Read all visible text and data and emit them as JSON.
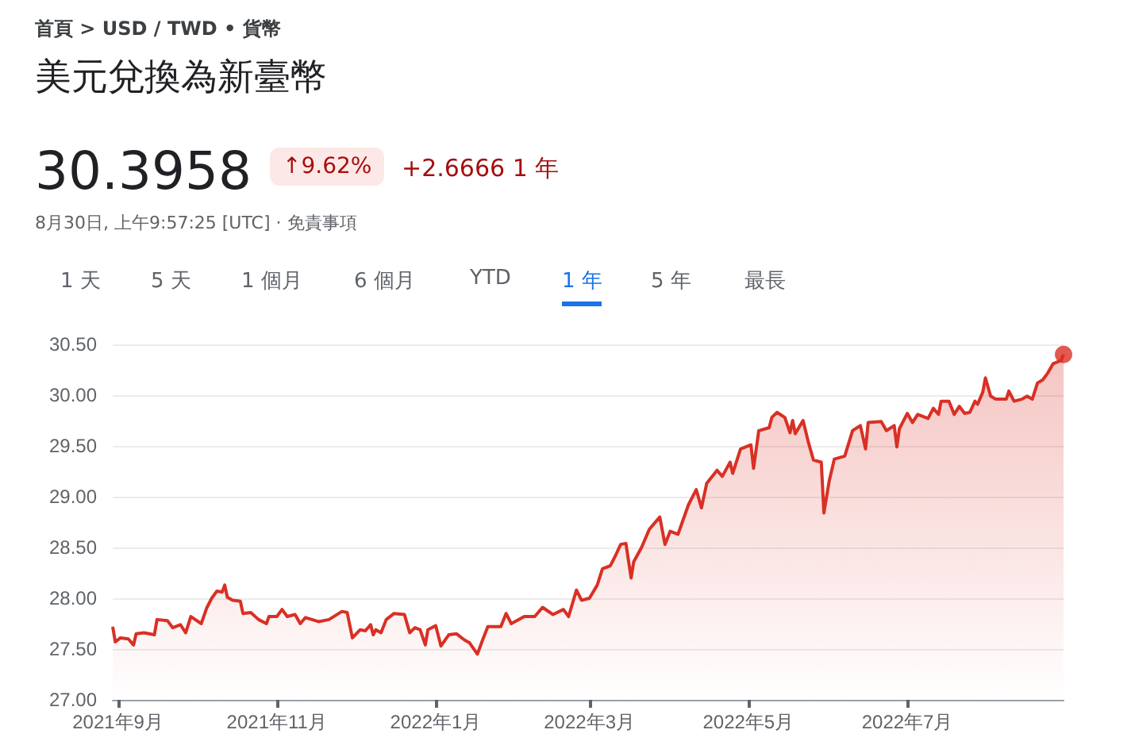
{
  "chart_data": {
    "type": "area",
    "title": "美元兌換為新臺幣",
    "subtitle": "首頁 > USD / TWD • 貨幣",
    "annotations": [
      "30.3958",
      "↑9.62%",
      "+2.6666 1 年",
      "8月30日, 上午9:57:25 [UTC] · 免責事項",
      "1 天",
      "5 天",
      "1 個月",
      "6 個月",
      "YTD",
      "1 年",
      "5 年",
      "最長"
    ],
    "xlim": [
      "2021-08-30",
      "2022-08-30"
    ],
    "xticks": [
      {
        "value": "2021-09-01",
        "label": "2021年9月"
      },
      {
        "value": "2021-11-01",
        "label": "2021年11月"
      },
      {
        "value": "2022-01-01",
        "label": "2022年1月"
      },
      {
        "value": "2022-03-01",
        "label": "2022年3月"
      },
      {
        "value": "2022-05-01",
        "label": "2022年5月"
      },
      {
        "value": "2022-07-01",
        "label": "2022年7月"
      }
    ],
    "ylim": [
      27,
      30.5
    ],
    "yticks": [
      {
        "value": 27,
        "label": "27.00"
      },
      {
        "value": 27.5,
        "label": "27.50"
      },
      {
        "value": 28,
        "label": "28.00"
      },
      {
        "value": 28.5,
        "label": "28.50"
      },
      {
        "value": 29,
        "label": "29.00"
      },
      {
        "value": 29.5,
        "label": "29.50"
      },
      {
        "value": 30,
        "label": "30.00"
      },
      {
        "value": 30.5,
        "label": "30.50"
      }
    ],
    "grid": "y",
    "marker": "none",
    "line_style": "solid",
    "series": [
      {
        "color": "#d93025",
        "x": [
          "2021-08-30",
          "2021-08-31",
          "2021-09-02",
          "2021-09-05",
          "2021-09-07",
          "2021-09-08",
          "2021-09-11",
          "2021-09-15",
          "2021-09-16",
          "2021-09-20",
          "2021-09-22",
          "2021-09-25",
          "2021-09-27",
          "2021-09-29",
          "2021-10-03",
          "2021-10-05",
          "2021-10-07",
          "2021-10-09",
          "2021-10-11",
          "2021-10-12",
          "2021-10-13",
          "2021-10-15",
          "2021-10-18",
          "2021-10-19",
          "2021-10-22",
          "2021-10-25",
          "2021-10-28",
          "2021-10-29",
          "2021-11-01",
          "2021-11-03",
          "2021-11-05",
          "2021-11-08",
          "2021-11-10",
          "2021-11-12",
          "2021-11-17",
          "2021-11-21",
          "2021-11-26",
          "2021-11-28",
          "2021-11-30",
          "2021-12-03",
          "2021-12-05",
          "2021-12-07",
          "2021-12-08",
          "2021-12-09",
          "2021-12-11",
          "2021-12-13",
          "2021-12-16",
          "2021-12-20",
          "2021-12-22",
          "2021-12-24",
          "2021-12-26",
          "2021-12-28",
          "2021-12-29",
          "2022-01-01",
          "2022-01-03",
          "2022-01-06",
          "2022-01-09",
          "2022-01-12",
          "2022-01-14",
          "2022-01-17",
          "2022-01-19",
          "2022-01-21",
          "2022-01-26",
          "2022-01-28",
          "2022-01-30",
          "2022-02-04",
          "2022-02-08",
          "2022-02-11",
          "2022-02-15",
          "2022-02-19",
          "2022-02-21",
          "2022-02-24",
          "2022-02-26",
          "2022-03-01",
          "2022-03-04",
          "2022-03-06",
          "2022-03-09",
          "2022-03-11",
          "2022-03-13",
          "2022-03-15",
          "2022-03-17",
          "2022-03-18",
          "2022-03-21",
          "2022-03-24",
          "2022-03-28",
          "2022-03-30",
          "2022-04-01",
          "2022-04-04",
          "2022-04-08",
          "2022-04-11",
          "2022-04-13",
          "2022-04-15",
          "2022-04-19",
          "2022-04-21",
          "2022-04-24",
          "2022-04-25",
          "2022-04-28",
          "2022-05-02",
          "2022-05-03",
          "2022-05-05",
          "2022-05-09",
          "2022-05-10",
          "2022-05-12",
          "2022-05-15",
          "2022-05-17",
          "2022-05-18",
          "2022-05-19",
          "2022-05-22",
          "2022-05-24",
          "2022-05-26",
          "2022-05-29",
          "2022-05-30",
          "2022-06-01",
          "2022-06-03",
          "2022-06-07",
          "2022-06-10",
          "2022-06-13",
          "2022-06-15",
          "2022-06-16",
          "2022-06-21",
          "2022-06-23",
          "2022-06-26",
          "2022-06-27",
          "2022-06-28",
          "2022-07-01",
          "2022-07-03",
          "2022-07-05",
          "2022-07-09",
          "2022-07-11",
          "2022-07-13",
          "2022-07-14",
          "2022-07-17",
          "2022-07-19",
          "2022-07-21",
          "2022-07-23",
          "2022-07-25",
          "2022-07-27",
          "2022-07-28",
          "2022-07-30",
          "2022-07-31",
          "2022-08-02",
          "2022-08-04",
          "2022-08-08",
          "2022-08-09",
          "2022-08-11",
          "2022-08-14",
          "2022-08-16",
          "2022-08-18",
          "2022-08-20",
          "2022-08-22",
          "2022-08-24",
          "2022-08-26",
          "2022-08-29",
          "2022-08-30"
        ],
        "values": [
          27.72,
          27.57,
          27.61,
          27.6,
          27.54,
          27.65,
          27.66,
          27.64,
          27.79,
          27.78,
          27.71,
          27.74,
          27.66,
          27.82,
          27.75,
          27.9,
          28.0,
          28.07,
          28.06,
          28.13,
          28.01,
          27.98,
          27.97,
          27.85,
          27.86,
          27.79,
          27.75,
          27.82,
          27.82,
          27.89,
          27.82,
          27.84,
          27.75,
          27.81,
          27.77,
          27.79,
          27.87,
          27.86,
          27.61,
          27.69,
          27.68,
          27.74,
          27.64,
          27.69,
          27.66,
          27.79,
          27.85,
          27.84,
          27.66,
          27.71,
          27.69,
          27.54,
          27.69,
          27.73,
          27.53,
          27.64,
          27.65,
          27.59,
          27.56,
          27.45,
          27.59,
          27.72,
          27.72,
          27.85,
          27.75,
          27.82,
          27.82,
          27.91,
          27.84,
          27.89,
          27.82,
          28.08,
          27.98,
          28.0,
          28.13,
          28.29,
          28.32,
          28.42,
          28.53,
          28.54,
          28.2,
          28.36,
          28.5,
          28.68,
          28.8,
          28.53,
          28.66,
          28.63,
          28.92,
          29.07,
          28.89,
          29.13,
          29.26,
          29.2,
          29.34,
          29.23,
          29.47,
          29.51,
          29.28,
          29.65,
          29.68,
          29.78,
          29.83,
          29.78,
          29.63,
          29.75,
          29.62,
          29.75,
          29.54,
          29.36,
          29.34,
          28.84,
          29.15,
          29.37,
          29.4,
          29.65,
          29.7,
          29.47,
          29.73,
          29.74,
          29.65,
          29.7,
          29.49,
          29.67,
          29.82,
          29.73,
          29.81,
          29.77,
          29.87,
          29.81,
          29.94,
          29.94,
          29.81,
          29.89,
          29.82,
          29.83,
          29.94,
          29.91,
          30.03,
          30.17,
          29.99,
          29.96,
          29.96,
          30.04,
          29.94,
          29.96,
          29.99,
          29.96,
          30.12,
          30.15,
          30.22,
          30.31,
          30.34,
          30.4
        ]
      },
      {
        "type": "scatter",
        "color": "#d93025",
        "marker": "circle",
        "x": [
          "2022-08-30"
        ],
        "values": [
          30.4
        ]
      }
    ]
  }
}
